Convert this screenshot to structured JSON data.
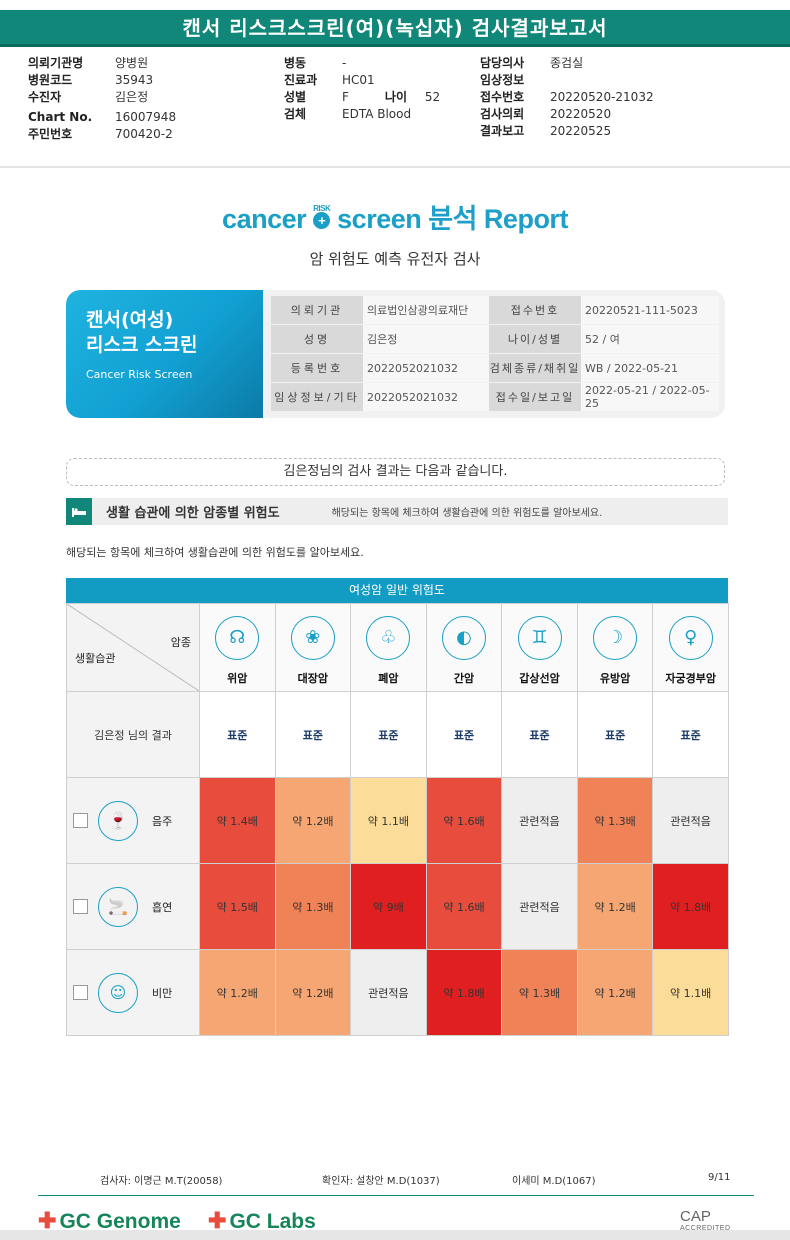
{
  "report_title": "캔서 리스크스크린(여)(녹십자) 검사결과보고서",
  "header": {
    "col1": [
      {
        "label": "의뢰기관명",
        "value": "양병원"
      },
      {
        "label": "병원코드",
        "value": "35943"
      },
      {
        "label": "수진자",
        "value": "김은정"
      },
      {
        "label": "Chart No.",
        "value": "16007948"
      },
      {
        "label": "주민번호",
        "value": "700420-2"
      }
    ],
    "col2": [
      {
        "label": "병동",
        "value": "-"
      },
      {
        "label": "진료과",
        "value": "HC01"
      },
      {
        "label": "성별",
        "value": "F",
        "label2": "나이",
        "value2": "52"
      },
      {
        "label": "검체",
        "value": "EDTA Blood"
      }
    ],
    "col3": [
      {
        "label": "담당의사",
        "value": "종검실"
      },
      {
        "label": "임상정보",
        "value": ""
      },
      {
        "label": "접수번호",
        "value": "20220520-21032"
      },
      {
        "label": "검사의뢰",
        "value": "20220520"
      },
      {
        "label": "결과보고",
        "value": "20220525"
      }
    ]
  },
  "brand": {
    "w1": "cancer",
    "dot": "+",
    "risk": "RISK",
    "w2": "screen",
    "kor": "분석 Report",
    "subtitle": "암 위험도 예측 유전자 검사"
  },
  "card": {
    "title1": "캔서(여성)",
    "title2": "리스크 스크린",
    "title_en": "Cancer Risk Screen",
    "rows": [
      {
        "l1": "의뢰기관",
        "v1": "의료법인삼광의료재단",
        "l2": "접수번호",
        "v2": "20220521-111-5023"
      },
      {
        "l1": "성명",
        "v1": "김은정",
        "l2": "나이/성별",
        "v2": "52 / 여"
      },
      {
        "l1": "등록번호",
        "v1": "2022052021032",
        "l2": "검체종류/채취일",
        "v2": "WB / 2022-05-21"
      },
      {
        "l1": "임상정보/기타",
        "v1": "2022052021032",
        "l2": "접수일/보고일",
        "v2": "2022-05-21 / 2022-05-25"
      }
    ]
  },
  "intro": "김은정님의 검사 결과는 다음과 같습니다.",
  "section": {
    "icon": "bed-icon",
    "title": "생활 습관에 의한 암종별 위험도",
    "note": "해당되는 항목에 체크하여 생활습관에 의한 위험도를 알아보세요."
  },
  "instruction": "해당되는 항목에 체크하여 생활습관에 의한 위험도를 알아보세요.",
  "grid": {
    "heading": "여성암 일반 위험도",
    "corner_top": "암종",
    "corner_bottom": "생활습관",
    "cancers": [
      {
        "name": "위암",
        "glyph": "☊"
      },
      {
        "name": "대장암",
        "glyph": "❀"
      },
      {
        "name": "폐암",
        "glyph": "♧"
      },
      {
        "name": "간암",
        "glyph": "◐"
      },
      {
        "name": "갑상선암",
        "glyph": "♊"
      },
      {
        "name": "유방암",
        "glyph": "☽"
      },
      {
        "name": "자궁경부암",
        "glyph": "♀"
      }
    ],
    "result_label": "김은정 님의 결과",
    "results": [
      "표준",
      "표준",
      "표준",
      "표준",
      "표준",
      "표준",
      "표준"
    ],
    "habits": [
      {
        "name": "음주",
        "glyph": "🍷",
        "icon": "wine-bottle-icon",
        "cells": [
          {
            "text": "약 1.4배",
            "color": "#e74c3c"
          },
          {
            "text": "약 1.2배",
            "color": "#f5a673"
          },
          {
            "text": "약 1.1배",
            "color": "#fbdc98"
          },
          {
            "text": "약 1.6배",
            "color": "#e74c3c"
          },
          {
            "text": "관련적음",
            "color": "#eeeeee"
          },
          {
            "text": "약 1.3배",
            "color": "#f08257"
          },
          {
            "text": "관련적음",
            "color": "#eeeeee"
          }
        ]
      },
      {
        "name": "흡연",
        "glyph": "🚬",
        "icon": "cigarette-icon",
        "cells": [
          {
            "text": "약 1.5배",
            "color": "#e74c3c"
          },
          {
            "text": "약 1.3배",
            "color": "#f08257"
          },
          {
            "text": "약 9배",
            "color": "#e02020"
          },
          {
            "text": "약 1.6배",
            "color": "#e74c3c"
          },
          {
            "text": "관련적음",
            "color": "#eeeeee"
          },
          {
            "text": "약 1.2배",
            "color": "#f5a673"
          },
          {
            "text": "약 1.8배",
            "color": "#e02020"
          }
        ]
      },
      {
        "name": "비만",
        "glyph": "☺",
        "icon": "body-icon",
        "cells": [
          {
            "text": "약 1.2배",
            "color": "#f5a673"
          },
          {
            "text": "약 1.2배",
            "color": "#f5a673"
          },
          {
            "text": "관련적음",
            "color": "#eeeeee"
          },
          {
            "text": "약 1.8배",
            "color": "#e02020"
          },
          {
            "text": "약 1.3배",
            "color": "#f08257"
          },
          {
            "text": "약 1.2배",
            "color": "#f5a673"
          },
          {
            "text": "약 1.1배",
            "color": "#fbdc98"
          }
        ]
      }
    ]
  },
  "footer": {
    "tester": "검사자: 이명근 M.T(20058)",
    "confirmer": "확인자: 설창안 M.D(1037)",
    "doctor2": "이세미 M.D(1067)",
    "page": "9/11",
    "logo1": "GC Genome",
    "logo2": "GC Labs",
    "cap": "CAP",
    "cap_sub": "ACCREDITED"
  },
  "colors": {
    "title_bar": "#11877a",
    "accent": "#1aa0c6",
    "grid_head": "#139cc3"
  }
}
